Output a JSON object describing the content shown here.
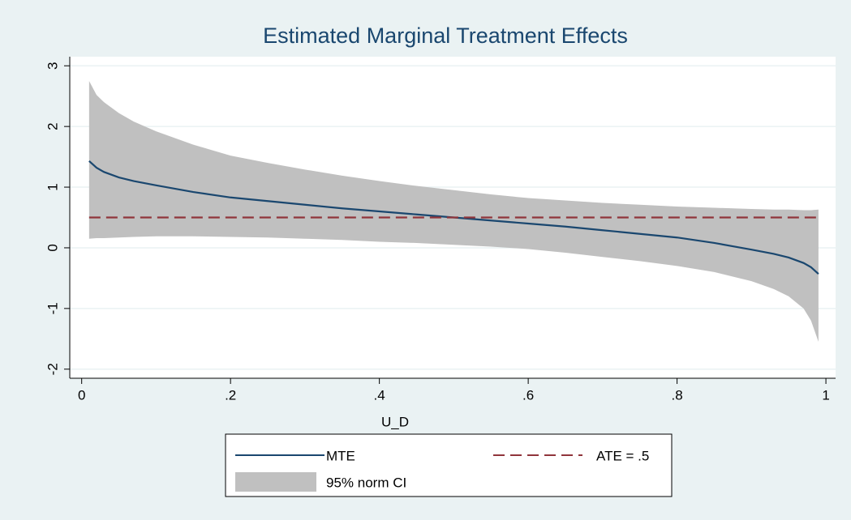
{
  "chart_data": {
    "type": "line",
    "title": "Estimated Marginal Treatment Effects",
    "x_label": "U_D",
    "xlim": [
      -0.016,
      1.013
    ],
    "ylim": [
      -2.15,
      3.15
    ],
    "xticks": [
      0,
      {
        "value": 0.2,
        "label": ".2"
      },
      {
        "value": 0.4,
        "label": ".4"
      },
      {
        "value": 0.6,
        "label": ".6"
      },
      {
        "value": 0.8,
        "label": ".8"
      },
      1
    ],
    "yticks": [
      -2,
      -1,
      0,
      1,
      2,
      3
    ],
    "grid": true,
    "legend": "bottom",
    "x": [
      0.01,
      0.02,
      0.03,
      0.05,
      0.07,
      0.1,
      0.15,
      0.2,
      0.25,
      0.3,
      0.35,
      0.4,
      0.45,
      0.5,
      0.55,
      0.6,
      0.65,
      0.7,
      0.75,
      0.8,
      0.85,
      0.9,
      0.93,
      0.95,
      0.97,
      0.98,
      0.99
    ],
    "series": [
      {
        "name": "MTE",
        "color": "#1a476f",
        "style": "solid",
        "values": [
          1.43,
          1.32,
          1.25,
          1.16,
          1.1,
          1.03,
          0.92,
          0.83,
          0.77,
          0.71,
          0.65,
          0.6,
          0.55,
          0.5,
          0.45,
          0.4,
          0.35,
          0.29,
          0.23,
          0.17,
          0.08,
          -0.03,
          -0.1,
          -0.16,
          -0.25,
          -0.32,
          -0.43
        ]
      },
      {
        "name": "ATE = .5",
        "color": "#90353b",
        "style": "dashed",
        "x": [
          0.01,
          0.99
        ],
        "values": [
          0.5,
          0.5
        ]
      },
      {
        "name": "95% norm CI",
        "color": "#c0c0c0",
        "style": "band",
        "upper": [
          2.75,
          2.52,
          2.4,
          2.22,
          2.08,
          1.92,
          1.7,
          1.52,
          1.4,
          1.29,
          1.19,
          1.1,
          1.02,
          0.95,
          0.88,
          0.82,
          0.78,
          0.74,
          0.71,
          0.68,
          0.66,
          0.64,
          0.63,
          0.63,
          0.62,
          0.62,
          0.63
        ],
        "lower": [
          0.15,
          0.16,
          0.16,
          0.17,
          0.18,
          0.19,
          0.19,
          0.18,
          0.17,
          0.15,
          0.13,
          0.1,
          0.08,
          0.05,
          0.02,
          -0.02,
          -0.08,
          -0.15,
          -0.22,
          -0.3,
          -0.4,
          -0.55,
          -0.68,
          -0.8,
          -1.0,
          -1.2,
          -1.55
        ]
      }
    ]
  }
}
